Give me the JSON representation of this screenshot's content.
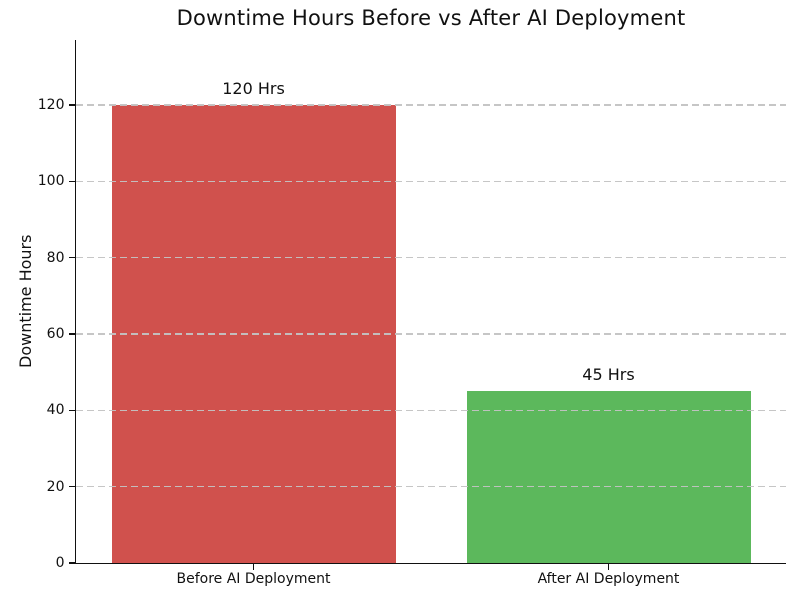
{
  "chart_data": {
    "type": "bar",
    "title": "Downtime Hours Before vs After AI Deployment",
    "xlabel": "",
    "ylabel": "Downtime Hours",
    "categories": [
      "Before AI Deployment",
      "After AI Deployment"
    ],
    "values": [
      120,
      45
    ],
    "bar_labels": [
      "120 Hrs",
      "45 Hrs"
    ],
    "bar_colors": [
      "#d0514d",
      "#5cb85c"
    ],
    "yticks": [
      0,
      20,
      40,
      60,
      80,
      100,
      120
    ],
    "ylim": [
      0,
      137
    ],
    "grid": "horizontal-dashed",
    "grid_color": "#c3c3c3",
    "legend": "none",
    "text_color": "#111111",
    "background_color": "#ffffff"
  }
}
